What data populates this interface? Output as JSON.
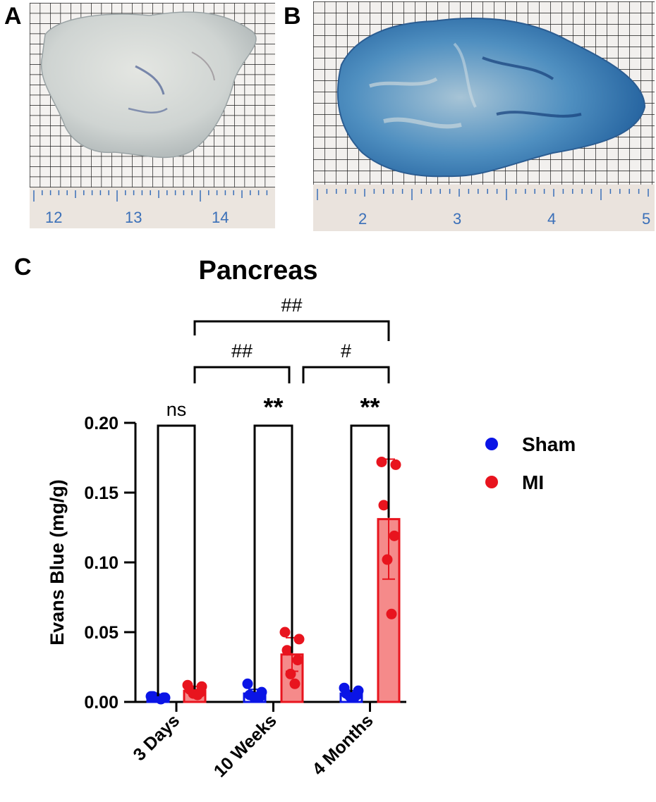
{
  "panels": {
    "a": {
      "letter": "A",
      "ruler_labels": [
        "12",
        "13",
        "14"
      ]
    },
    "b": {
      "letter": "B",
      "ruler_labels": [
        "2",
        "3",
        "4",
        "5"
      ]
    },
    "c": {
      "letter": "C"
    }
  },
  "colors": {
    "sham": "#0a14e6",
    "mi": "#e8141e",
    "mi_bar_fill": "#f58a8a",
    "grid_line": "#1a1a1a",
    "ruler_bg": "#eae3dd",
    "ruler_ink": "#3a6fb8"
  },
  "chart_data": {
    "type": "bar",
    "title": "Pancreas",
    "xlabel": "",
    "ylabel": "Evans Blue (mg/g)",
    "ylim": [
      0,
      0.2
    ],
    "yticks": [
      "0.00",
      "0.05",
      "0.10",
      "0.15",
      "0.20"
    ],
    "categories": [
      "3 Days",
      "10 Weeks",
      "4 Months"
    ],
    "legend": {
      "position": "right",
      "entries": [
        "Sham",
        "MI"
      ]
    },
    "series": [
      {
        "name": "Sham",
        "values": [
          0.003,
          0.006,
          0.006
        ],
        "error": [
          0.001,
          0.003,
          0.002
        ],
        "points": [
          [
            0.004,
            0.003,
            0.004,
            0.003,
            0.003,
            0.002
          ],
          [
            0.013,
            0.007,
            0.005,
            0.004,
            0.004,
            0.003
          ],
          [
            0.01,
            0.008,
            0.006,
            0.005,
            0.004,
            0.003
          ]
        ]
      },
      {
        "name": "MI",
        "values": [
          0.008,
          0.034,
          0.131
        ],
        "error": [
          0.003,
          0.012,
          0.043
        ],
        "points": [
          [
            0.012,
            0.011,
            0.009,
            0.007,
            0.006,
            0.005
          ],
          [
            0.05,
            0.045,
            0.037,
            0.03,
            0.02,
            0.013
          ],
          [
            0.172,
            0.17,
            0.141,
            0.119,
            0.102,
            0.063
          ]
        ]
      }
    ],
    "annotations": {
      "pairwise": [
        "ns",
        "**",
        "**"
      ],
      "between_mi": [
        {
          "from": "3 Days",
          "to": "10 Weeks",
          "label": "##"
        },
        {
          "from": "10 Weeks",
          "to": "4 Months",
          "label": "#"
        },
        {
          "from": "3 Days",
          "to": "4 Months",
          "label": "##"
        }
      ]
    }
  }
}
